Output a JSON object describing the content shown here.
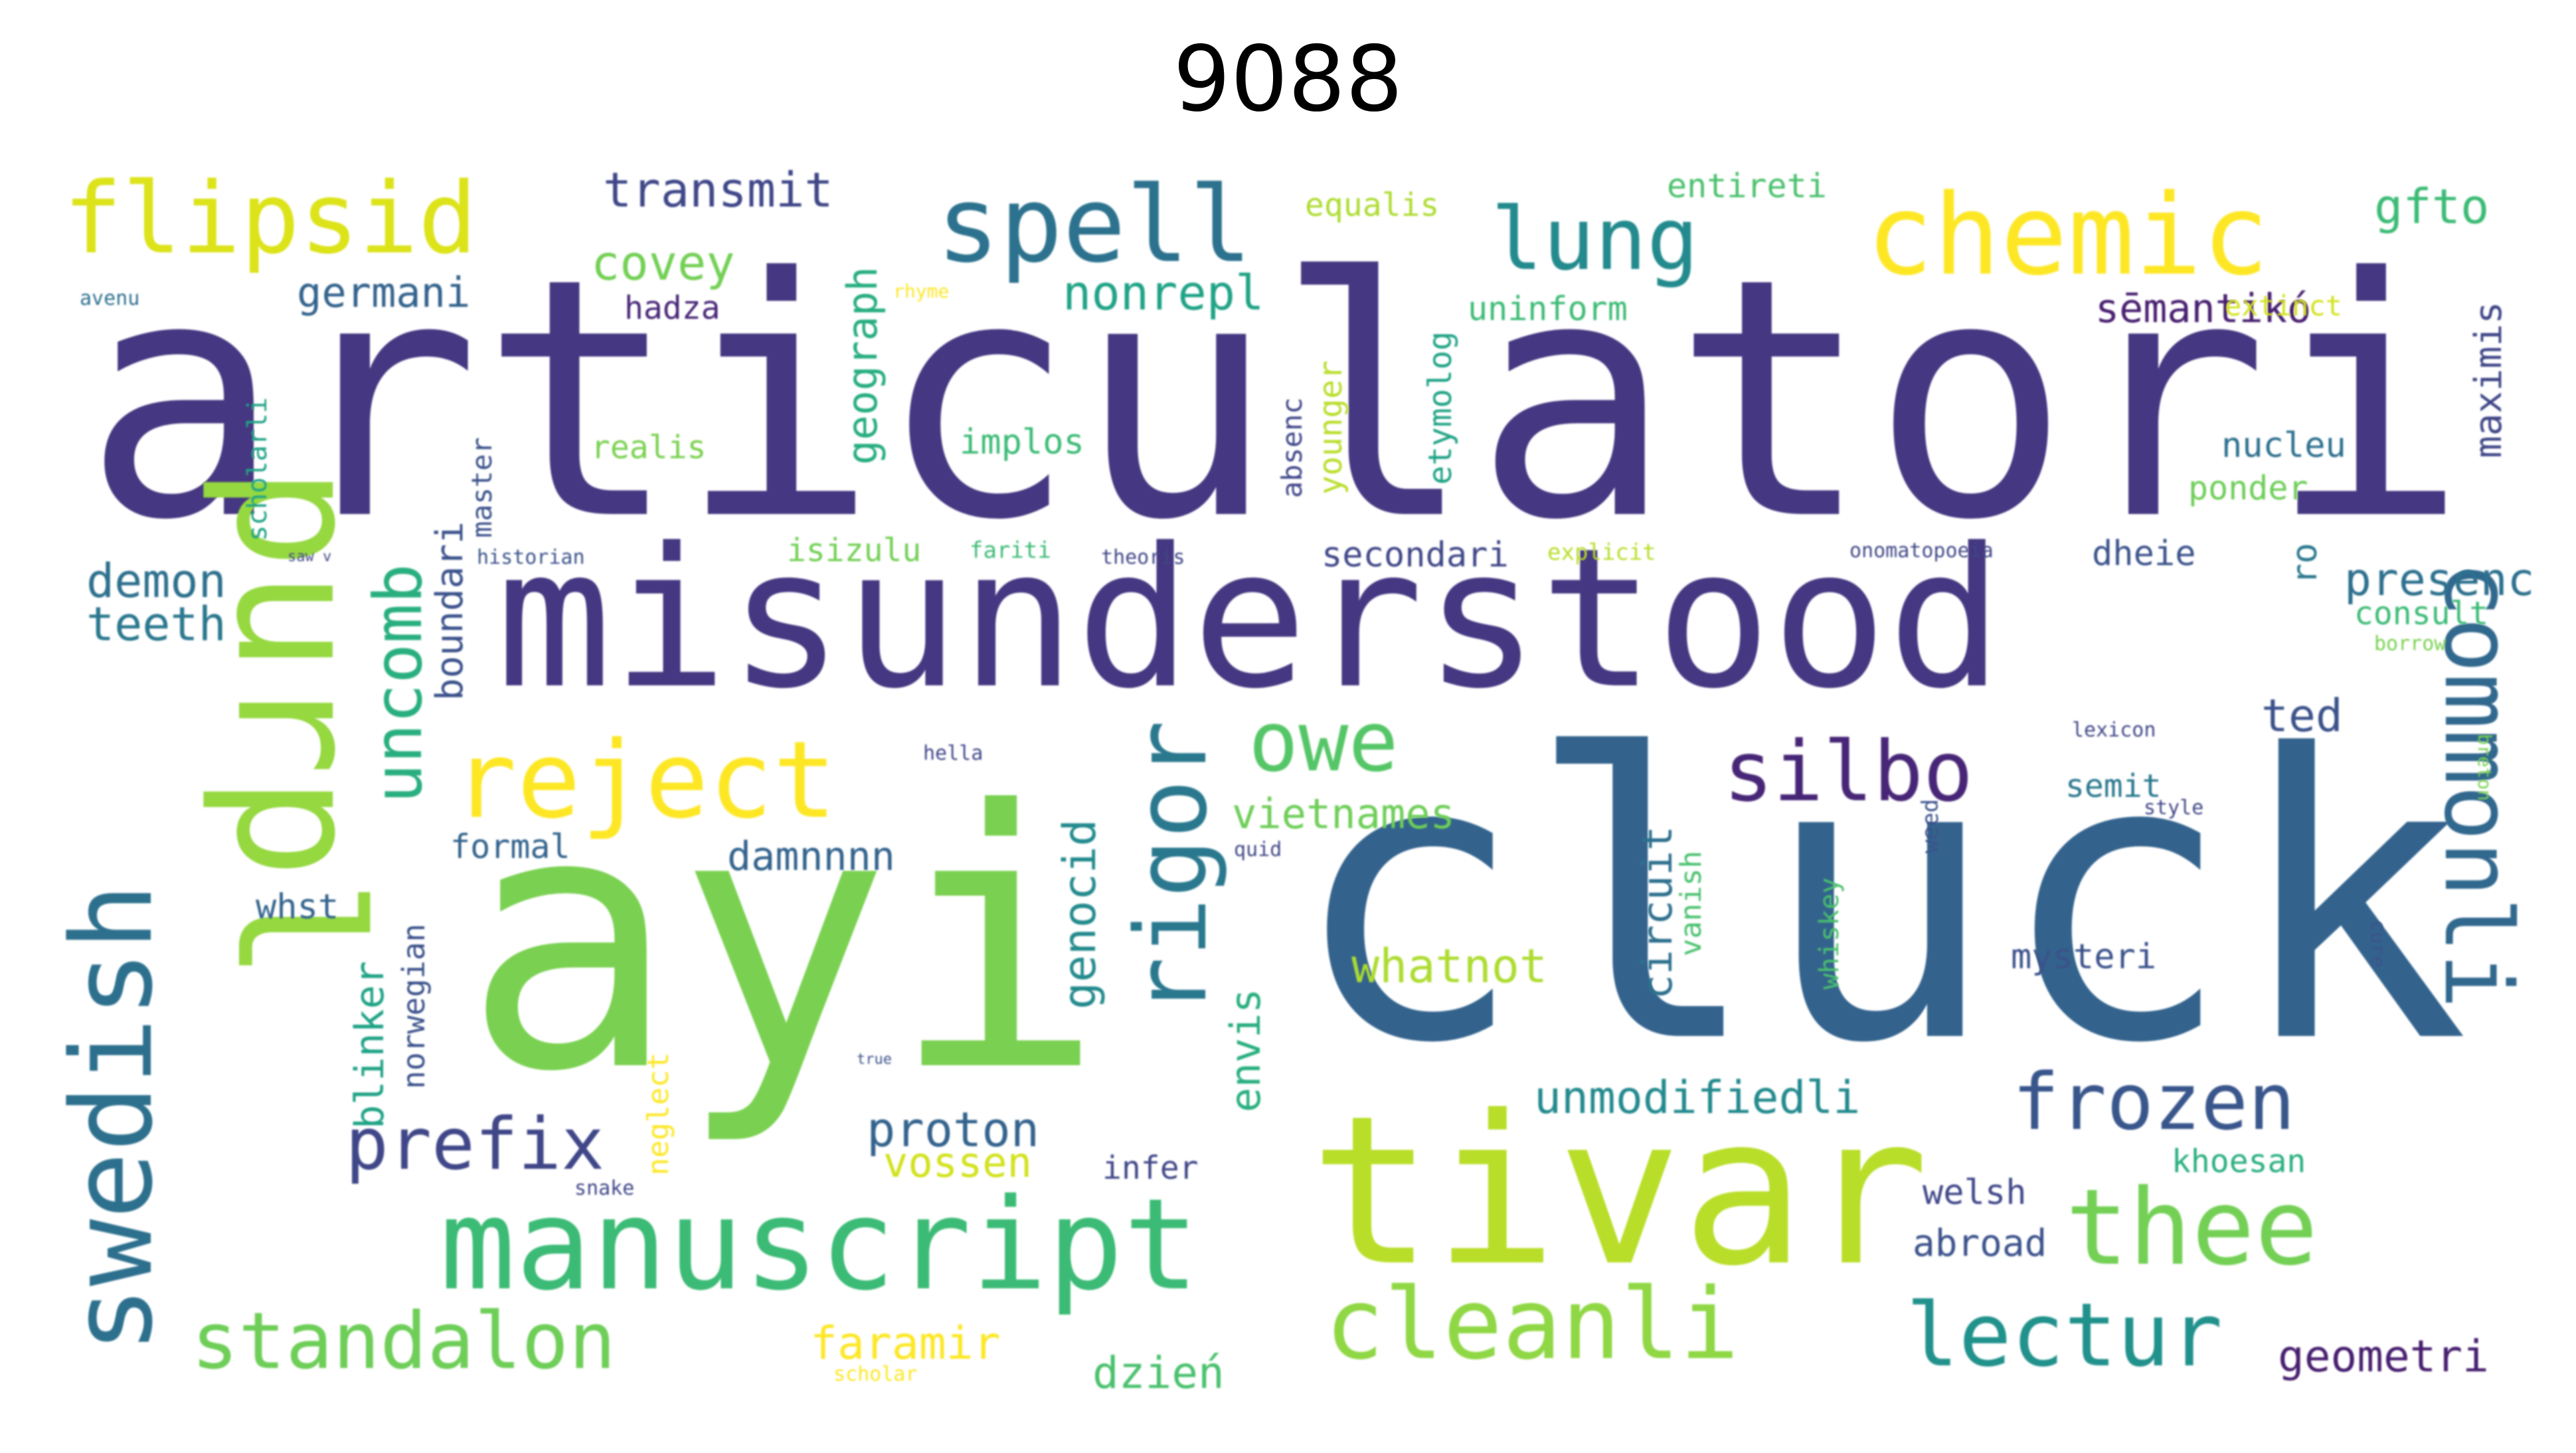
{
  "title": "9088",
  "words": [
    {
      "text": "articulatori",
      "color": "#453781"
    },
    {
      "text": "misunderstood",
      "color": "#453781"
    },
    {
      "text": "cluck",
      "color": "#33638d"
    },
    {
      "text": "ayi",
      "color": "#7ad151"
    },
    {
      "text": "purpl",
      "color": "#95d840"
    },
    {
      "text": "tivar",
      "color": "#b8de29"
    },
    {
      "text": "manuscript",
      "color": "#3bbb75"
    },
    {
      "text": "commonli",
      "color": "#31688e"
    },
    {
      "text": "swedish",
      "color": "#2d708e"
    },
    {
      "text": "rigor",
      "color": "#2a788e"
    },
    {
      "text": "reject",
      "color": "#fde725"
    },
    {
      "text": "chemic",
      "color": "#fde725"
    },
    {
      "text": "flipsid",
      "color": "#dce319"
    },
    {
      "text": "spell",
      "color": "#2c728e"
    },
    {
      "text": "lung",
      "color": "#238a8d"
    },
    {
      "text": "thee",
      "color": "#73d055"
    },
    {
      "text": "cleanli",
      "color": "#8fd744"
    },
    {
      "text": "lectur",
      "color": "#21918c"
    },
    {
      "text": "standalon",
      "color": "#6ece58"
    },
    {
      "text": "frozen",
      "color": "#39568c"
    },
    {
      "text": "silbo",
      "color": "#482677"
    },
    {
      "text": "owe",
      "color": "#55c667"
    },
    {
      "text": "uncomb",
      "color": "#29af7f"
    },
    {
      "text": "prefix",
      "color": "#404788"
    },
    {
      "text": "transmit",
      "color": "#3f4788"
    },
    {
      "text": "covey",
      "color": "#73d055"
    },
    {
      "text": "germani",
      "color": "#33638d"
    },
    {
      "text": "geograph",
      "color": "#27ad81"
    },
    {
      "text": "nonrepl",
      "color": "#20a386"
    },
    {
      "text": "gfto",
      "color": "#3cbb75"
    },
    {
      "text": "sēmantikó",
      "color": "#481f70"
    },
    {
      "text": "equalis",
      "color": "#addc30"
    },
    {
      "text": "entireti",
      "color": "#4ac16d"
    },
    {
      "text": "hadza",
      "color": "#482677"
    },
    {
      "text": "rhyme",
      "color": "#fde725"
    },
    {
      "text": "uninform",
      "color": "#3cbb75"
    },
    {
      "text": "extinct",
      "color": "#d2e21b"
    },
    {
      "text": "maximis",
      "color": "#404788"
    },
    {
      "text": "avenu",
      "color": "#2d708e"
    },
    {
      "text": "scholarli",
      "color": "#20a386"
    },
    {
      "text": "boundari",
      "color": "#3b528b"
    },
    {
      "text": "master",
      "color": "#3b528b"
    },
    {
      "text": "realis",
      "color": "#7ad151"
    },
    {
      "text": "implos",
      "color": "#3cbb75"
    },
    {
      "text": "absenc",
      "color": "#404788"
    },
    {
      "text": "younger",
      "color": "#b8de29"
    },
    {
      "text": "etymolog",
      "color": "#20a386"
    },
    {
      "text": "nucleu",
      "color": "#2d708e"
    },
    {
      "text": "ponder",
      "color": "#6ece58"
    },
    {
      "text": "demon",
      "color": "#2d708e"
    },
    {
      "text": "teeth",
      "color": "#2a788e"
    },
    {
      "text": "historian",
      "color": "#3b528b"
    },
    {
      "text": "isizulu",
      "color": "#73d055"
    },
    {
      "text": "fariti",
      "color": "#3cbb75"
    },
    {
      "text": "theoris",
      "color": "#404788"
    },
    {
      "text": "secondari",
      "color": "#404788"
    },
    {
      "text": "explicit",
      "color": "#b8de29"
    },
    {
      "text": "onomatopoeia",
      "color": "#404788"
    },
    {
      "text": "dheie",
      "color": "#3b528b"
    },
    {
      "text": "ro",
      "color": "#2a788e"
    },
    {
      "text": "presenc",
      "color": "#2d708e"
    },
    {
      "text": "consult",
      "color": "#3cbb75"
    },
    {
      "text": "borrow",
      "color": "#7ad151"
    },
    {
      "text": "ted",
      "color": "#3b528b"
    },
    {
      "text": "lexicon",
      "color": "#404788"
    },
    {
      "text": "hella",
      "color": "#404788"
    },
    {
      "text": "formal",
      "color": "#33638d"
    },
    {
      "text": "damnnnn",
      "color": "#33638d"
    },
    {
      "text": "genocid",
      "color": "#238a8d"
    },
    {
      "text": "vietnames",
      "color": "#6ece58"
    },
    {
      "text": "circuit",
      "color": "#2d708e"
    },
    {
      "text": "vanish",
      "color": "#4ac16d"
    },
    {
      "text": "whiskey",
      "color": "#4ac16d"
    },
    {
      "text": "weed",
      "color": "#3b528b"
    },
    {
      "text": "semit",
      "color": "#2a788e"
    },
    {
      "text": "style",
      "color": "#404788"
    },
    {
      "text": "breton",
      "color": "#7ad151"
    },
    {
      "text": "quid",
      "color": "#404788"
    },
    {
      "text": "whatnot",
      "color": "#addc30"
    },
    {
      "text": "envis",
      "color": "#29af7f"
    },
    {
      "text": "mysteri",
      "color": "#3b528b"
    },
    {
      "text": "cure",
      "color": "#3b528b"
    },
    {
      "text": "whst",
      "color": "#33638d"
    },
    {
      "text": "blinker",
      "color": "#20a386"
    },
    {
      "text": "norwegian",
      "color": "#3b528b"
    },
    {
      "text": "neglect",
      "color": "#fde725"
    },
    {
      "text": "unmodifiedli",
      "color": "#238a8d"
    },
    {
      "text": "proton",
      "color": "#33638d"
    },
    {
      "text": "vossen",
      "color": "#d2e21b"
    },
    {
      "text": "infer",
      "color": "#404788"
    },
    {
      "text": "khoesan",
      "color": "#29af7f"
    },
    {
      "text": "welsh",
      "color": "#404788"
    },
    {
      "text": "abroad",
      "color": "#3b528b"
    },
    {
      "text": "faramir",
      "color": "#fde725"
    },
    {
      "text": "dzień",
      "color": "#4ac16d"
    },
    {
      "text": "scholar",
      "color": "#fde725"
    },
    {
      "text": "geometri",
      "color": "#481f70"
    },
    {
      "text": "snake",
      "color": "#404788"
    },
    {
      "text": "true",
      "color": "#3b528b"
    },
    {
      "text": "saw v",
      "color": "#404788"
    }
  ]
}
